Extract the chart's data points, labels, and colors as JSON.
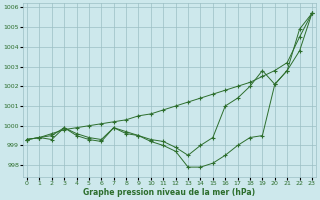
{
  "xlabel": "Graphe pression niveau de la mer (hPa)",
  "ylim": [
    997.4,
    1006.2
  ],
  "xlim": [
    -0.3,
    23.3
  ],
  "yticks": [
    998,
    999,
    1000,
    1001,
    1002,
    1003,
    1004,
    1005,
    1006
  ],
  "xticks": [
    0,
    1,
    2,
    3,
    4,
    5,
    6,
    7,
    8,
    9,
    10,
    11,
    12,
    13,
    14,
    15,
    16,
    17,
    18,
    19,
    20,
    21,
    22,
    23
  ],
  "background_color": "#cde8ec",
  "grid_color": "#9bbfc4",
  "line_color": "#2d6e2d",
  "series": {
    "line_straight": [
      999.3,
      999.4,
      999.6,
      999.8,
      999.9,
      1000.0,
      1000.1,
      1000.2,
      1000.3,
      1000.5,
      1000.6,
      1000.8,
      1001.0,
      1001.2,
      1001.4,
      1001.6,
      1001.8,
      1002.0,
      1002.2,
      1002.5,
      1002.8,
      1003.2,
      1004.5,
      1005.7
    ],
    "line_mid": [
      999.3,
      999.4,
      999.5,
      999.9,
      999.6,
      999.4,
      999.3,
      999.9,
      999.7,
      999.5,
      999.3,
      999.2,
      998.9,
      998.5,
      999.0,
      999.4,
      1001.0,
      1001.4,
      1002.0,
      1002.8,
      1002.1,
      1002.8,
      1003.8,
      1005.7
    ],
    "line_dip": [
      999.3,
      999.4,
      999.3,
      999.9,
      999.5,
      999.3,
      999.2,
      999.9,
      999.6,
      999.5,
      999.2,
      999.0,
      998.7,
      997.9,
      997.9,
      998.1,
      998.5,
      999.0,
      999.4,
      999.5,
      1002.1,
      1002.8,
      1004.9,
      1005.7
    ]
  }
}
